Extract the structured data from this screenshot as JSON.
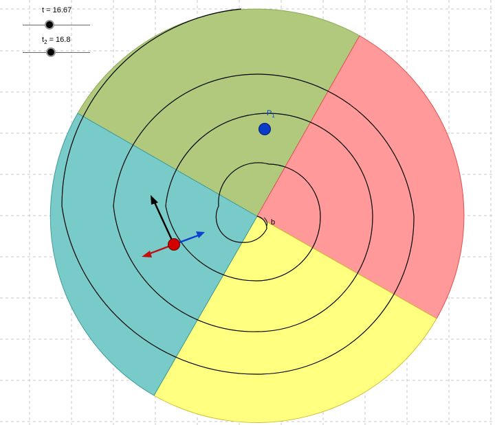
{
  "sliders": [
    {
      "name": "t",
      "sub": "",
      "value_text": "= 16.67",
      "value": 16.67
    },
    {
      "name": "t",
      "sub": "2",
      "value_text": "= 16.8",
      "value": 16.8
    }
  ],
  "labels": {
    "point_name": "P",
    "point_sub": "1",
    "angle_label": "b"
  },
  "colors": {
    "grid": "#c8c8c8",
    "sector_green": "#b1c97c",
    "sector_red": "#ff999a",
    "sector_teal": "#79cbc9",
    "sector_yellow": "#ffff80",
    "point_blue": "#0a3cc8",
    "point_red": "#d40000",
    "vector_black": "#000000",
    "vector_blue": "#1040d0",
    "vector_red": "#c01010"
  }
}
